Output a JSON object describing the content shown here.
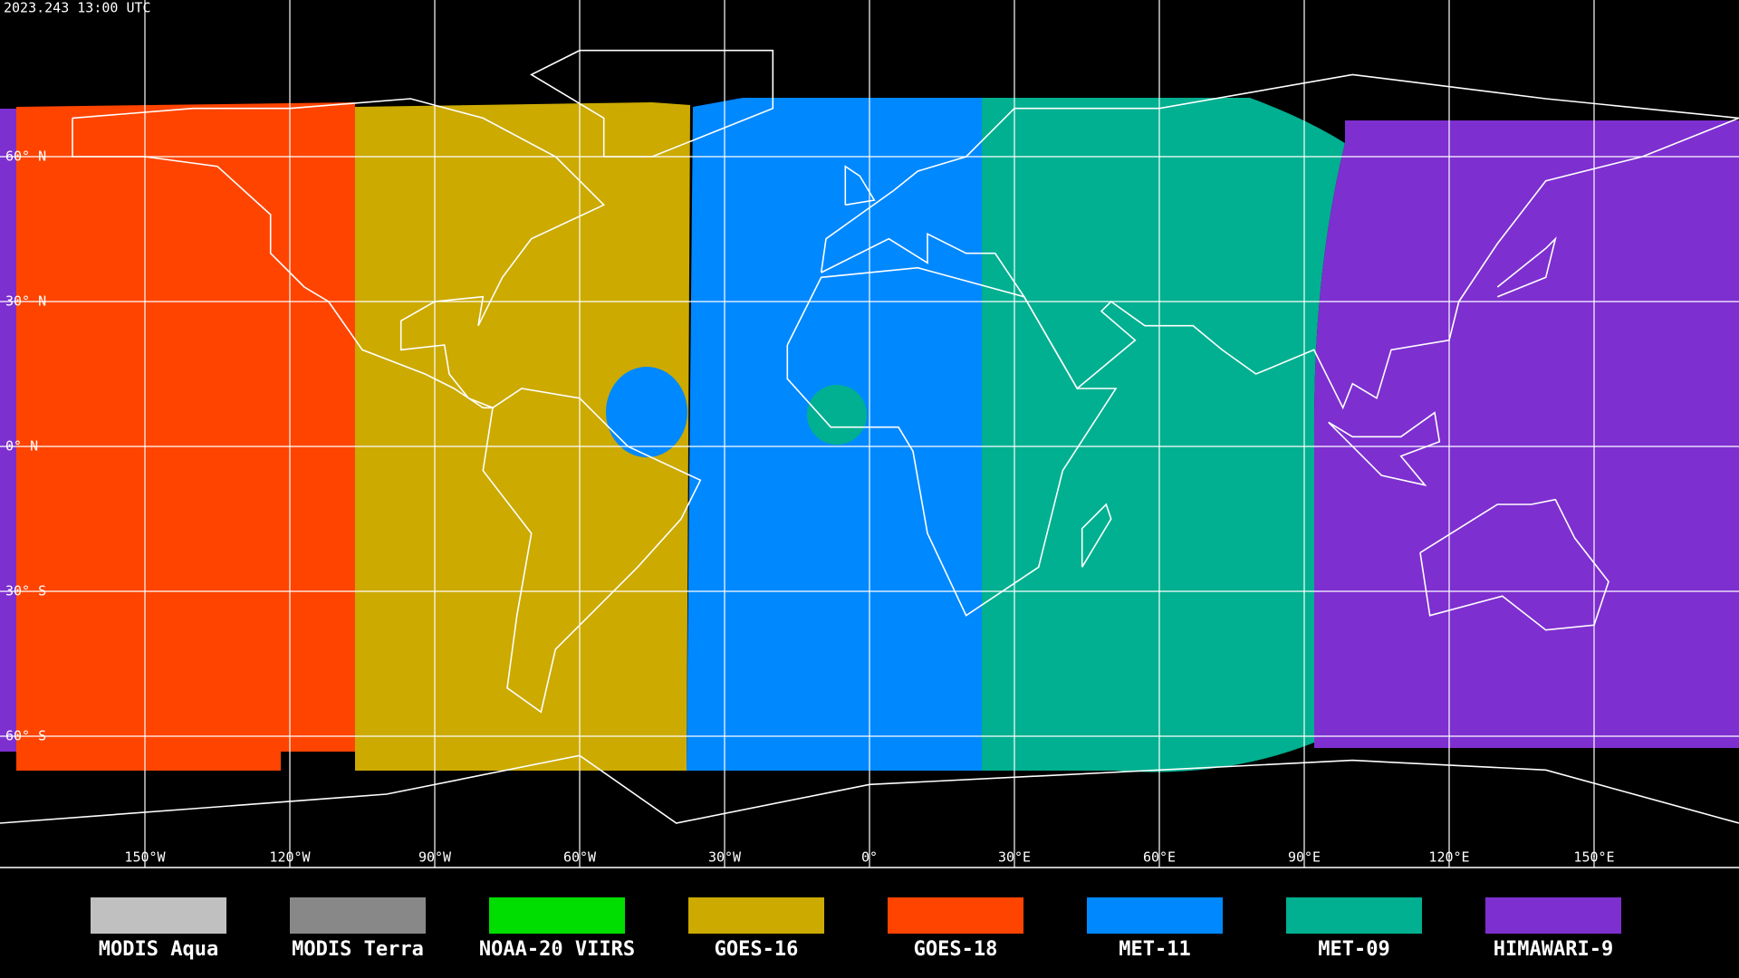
{
  "title": "2023.243 13:00 UTC",
  "latitude_labels": [
    "60° N",
    "30° N",
    "0° N",
    "30° S",
    "60° S"
  ],
  "longitude_labels": [
    "150°W",
    "120°W",
    "90°W",
    "60°W",
    "30°W",
    "0°",
    "30°E",
    "60°E",
    "90°E",
    "120°E",
    "150°E"
  ],
  "legend": [
    {
      "name": "MODIS Aqua",
      "color": "#c0c0c0"
    },
    {
      "name": "MODIS Terra",
      "color": "#888888"
    },
    {
      "name": "NOAA-20 VIIRS",
      "color": "#00dd00"
    },
    {
      "name": "GOES-16",
      "color": "#ccaa00"
    },
    {
      "name": "GOES-18",
      "color": "#ff4400"
    },
    {
      "name": "MET-11",
      "color": "#0088ff"
    },
    {
      "name": "MET-09",
      "color": "#00b090"
    },
    {
      "name": "HIMAWARI-9",
      "color": "#7e2fd0"
    }
  ]
}
